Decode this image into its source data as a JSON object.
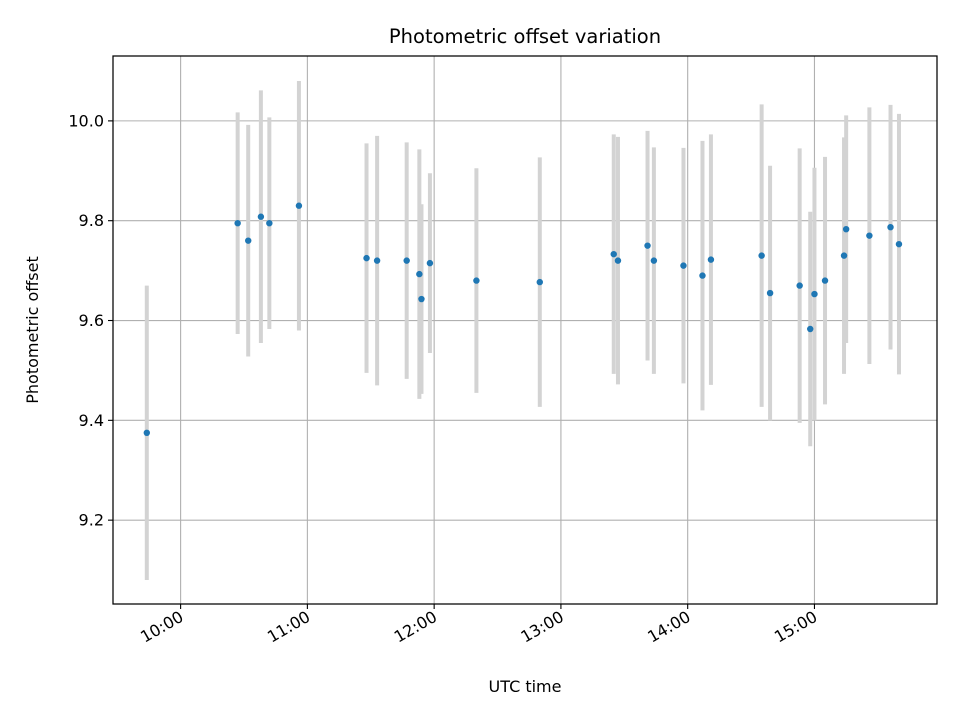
{
  "chart_data": {
    "type": "scatter",
    "title": "Photometric offset variation",
    "xlabel": "UTC time",
    "ylabel": "Photometric offset",
    "grid": true,
    "colors": {
      "points": "#1f77b4",
      "errorbars": "#d3d3d3",
      "grid": "#b0b0b0",
      "axes": "#000000"
    },
    "xlim": [
      "09:28",
      "15:58"
    ],
    "ylim": [
      9.032,
      10.13
    ],
    "x_ticks": [
      "10:00",
      "11:00",
      "12:00",
      "13:00",
      "14:00",
      "15:00"
    ],
    "y_ticks": [
      "9.2",
      "9.4",
      "9.6",
      "9.8",
      "10.0"
    ],
    "points": [
      {
        "x": "09:44",
        "y": 9.375,
        "err": 0.295
      },
      {
        "x": "10:27",
        "y": 9.795,
        "err": 0.222
      },
      {
        "x": "10:32",
        "y": 9.76,
        "err": 0.232
      },
      {
        "x": "10:38",
        "y": 9.808,
        "err": 0.253
      },
      {
        "x": "10:42",
        "y": 9.795,
        "err": 0.212
      },
      {
        "x": "10:56",
        "y": 9.83,
        "err": 0.25
      },
      {
        "x": "11:28",
        "y": 9.725,
        "err": 0.23
      },
      {
        "x": "11:33",
        "y": 9.72,
        "err": 0.25
      },
      {
        "x": "11:47",
        "y": 9.72,
        "err": 0.237
      },
      {
        "x": "11:53",
        "y": 9.693,
        "err": 0.25
      },
      {
        "x": "11:54",
        "y": 9.643,
        "err": 0.19
      },
      {
        "x": "11:58",
        "y": 9.715,
        "err": 0.18
      },
      {
        "x": "12:20",
        "y": 9.68,
        "err": 0.225
      },
      {
        "x": "12:50",
        "y": 9.677,
        "err": 0.25
      },
      {
        "x": "13:25",
        "y": 9.733,
        "err": 0.24
      },
      {
        "x": "13:27",
        "y": 9.72,
        "err": 0.248
      },
      {
        "x": "13:41",
        "y": 9.75,
        "err": 0.23
      },
      {
        "x": "13:44",
        "y": 9.72,
        "err": 0.227
      },
      {
        "x": "13:58",
        "y": 9.71,
        "err": 0.236
      },
      {
        "x": "14:07",
        "y": 9.69,
        "err": 0.27
      },
      {
        "x": "14:11",
        "y": 9.722,
        "err": 0.251
      },
      {
        "x": "14:35",
        "y": 9.73,
        "err": 0.303
      },
      {
        "x": "14:39",
        "y": 9.655,
        "err": 0.255
      },
      {
        "x": "14:53",
        "y": 9.67,
        "err": 0.275
      },
      {
        "x": "14:58",
        "y": 9.583,
        "err": 0.235
      },
      {
        "x": "15:00",
        "y": 9.653,
        "err": 0.253
      },
      {
        "x": "15:05",
        "y": 9.68,
        "err": 0.248
      },
      {
        "x": "15:14",
        "y": 9.73,
        "err": 0.237
      },
      {
        "x": "15:15",
        "y": 9.783,
        "err": 0.228
      },
      {
        "x": "15:26",
        "y": 9.77,
        "err": 0.257
      },
      {
        "x": "15:36",
        "y": 9.787,
        "err": 0.245
      },
      {
        "x": "15:40",
        "y": 9.753,
        "err": 0.261
      }
    ]
  }
}
